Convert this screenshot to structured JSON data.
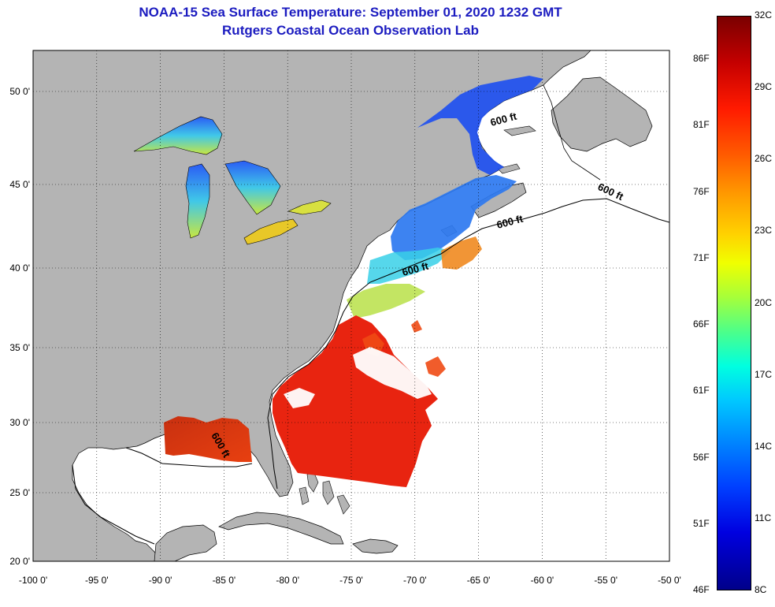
{
  "title": {
    "line1": "NOAA-15 Sea Surface Temperature:  September 01, 2020 1232 GMT",
    "line2": "Rutgers Coastal Ocean Observation Lab"
  },
  "axes": {
    "x_ticks": [
      "-100 0'",
      "-95 0'",
      "-90 0'",
      "-85 0'",
      "-80 0'",
      "-75 0'",
      "-70 0'",
      "-65 0'",
      "-60 0'",
      "-55 0'",
      "-50 0'"
    ],
    "y_ticks": [
      "50 0'",
      "45 0'",
      "40 0'",
      "35 0'",
      "30 0'",
      "25 0'",
      "20 0'"
    ]
  },
  "contour_labels": [
    "600 ft",
    "600 ft",
    "600 ft",
    "600 ft",
    "600 ft"
  ],
  "colorbar": {
    "celsius": [
      "32C",
      "29C",
      "26C",
      "23C",
      "20C",
      "17C",
      "14C",
      "11C",
      "8C"
    ],
    "fahrenheit": [
      "86F",
      "81F",
      "76F",
      "71F",
      "66F",
      "61F",
      "56F",
      "51F",
      "46F"
    ]
  },
  "colors": {
    "land": "#b4b4b4",
    "ocean_nodata": "#ffffff",
    "title": "#1c1cc0",
    "warm_sst": "#e8240c",
    "cold_sst": "#1f6cf0"
  }
}
